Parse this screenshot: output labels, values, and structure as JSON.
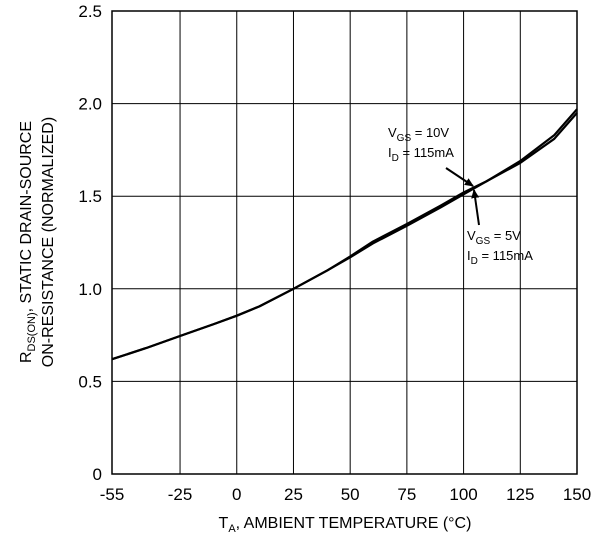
{
  "chart_data": {
    "type": "line",
    "xlabel": {
      "main": "T",
      "sub": "A",
      "rest": ", AMBIENT TEMPERATURE (°C)"
    },
    "ylabel": {
      "line1_main": "R",
      "line1_sub": "DS(ON)",
      "line1_rest": ", STATIC DRAIN-SOURCE",
      "line2": "ON-RESISTANCE (NORMALIZED)"
    },
    "xlim": [
      -55,
      150
    ],
    "ylim": [
      0,
      2.5
    ],
    "x_ticks": [
      -55,
      -25,
      0,
      25,
      50,
      75,
      100,
      125,
      150
    ],
    "x_tick_labels": [
      "-55",
      "-25",
      "0",
      "25",
      "50",
      "75",
      "100",
      "125",
      "150"
    ],
    "y_ticks": [
      0,
      0.5,
      1.0,
      1.5,
      2.0,
      2.5
    ],
    "y_tick_labels": [
      "0",
      "0.5",
      "1.0",
      "1.5",
      "2.0",
      "2.5"
    ],
    "grid": true,
    "series": [
      {
        "x": [
          -55,
          -40,
          -25,
          -10,
          0,
          10,
          25,
          40,
          50,
          60,
          75,
          90,
          100,
          110,
          125,
          140,
          150
        ],
        "y": [
          0.62,
          0.68,
          0.745,
          0.81,
          0.855,
          0.905,
          1.0,
          1.1,
          1.175,
          1.255,
          1.35,
          1.45,
          1.52,
          1.58,
          1.68,
          1.81,
          1.95
        ]
      },
      {
        "x": [
          -55,
          -40,
          -25,
          -10,
          0,
          10,
          25,
          40,
          50,
          60,
          75,
          90,
          100,
          110,
          125,
          140,
          150
        ],
        "y": [
          0.62,
          0.68,
          0.745,
          0.81,
          0.855,
          0.905,
          1.0,
          1.1,
          1.17,
          1.245,
          1.34,
          1.44,
          1.51,
          1.58,
          1.69,
          1.83,
          1.97
        ]
      }
    ],
    "annotations": [
      {
        "line1_main": "V",
        "line1_sub": "GS",
        "line1_rest": " = 10V",
        "line2_main": "I",
        "line2_sub": "D",
        "line2_rest": " = 115mA",
        "arrow_from": [
          98,
          1.76
        ],
        "arrow_to": [
          108,
          1.57
        ]
      },
      {
        "line1_main": "V",
        "line1_sub": "GS",
        "line1_rest": " = 5V",
        "line2_main": "I",
        "line2_sub": "D",
        "line2_rest": " = 115mA",
        "arrow_from": [
          110,
          1.3
        ],
        "arrow_to": [
          106,
          1.5
        ]
      }
    ]
  }
}
